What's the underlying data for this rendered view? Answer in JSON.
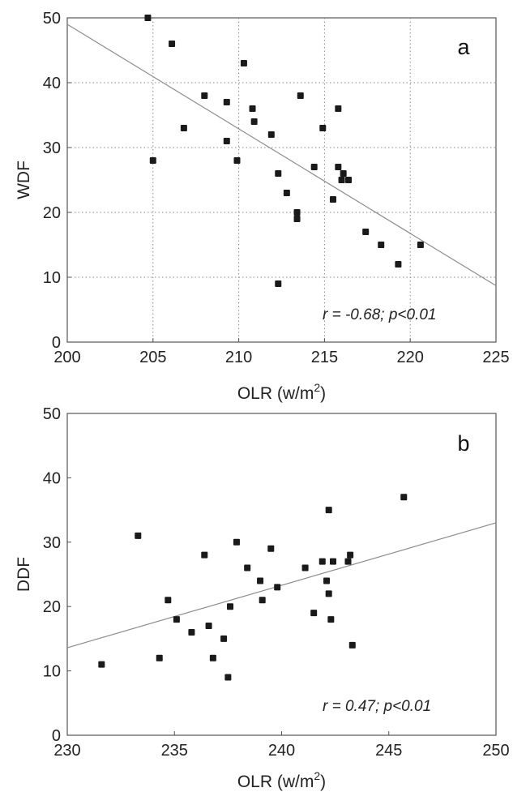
{
  "chart_data": [
    {
      "type": "scatter",
      "panel_letter": "a",
      "xlabel": "OLR (w/m",
      "xlabel_sup": "2",
      "xlabel_close": ")",
      "ylabel": "WDF",
      "xlim": [
        200,
        225
      ],
      "ylim": [
        0,
        50
      ],
      "xticks": [
        200,
        205,
        210,
        215,
        220,
        225
      ],
      "yticks": [
        0,
        10,
        20,
        30,
        40,
        50
      ],
      "grid": true,
      "annotation": "r = -0.68;  p<0.01",
      "points": [
        {
          "x": 204.7,
          "y": 50
        },
        {
          "x": 205.0,
          "y": 28
        },
        {
          "x": 206.1,
          "y": 46
        },
        {
          "x": 206.8,
          "y": 33
        },
        {
          "x": 208.0,
          "y": 38
        },
        {
          "x": 209.3,
          "y": 37
        },
        {
          "x": 209.3,
          "y": 31
        },
        {
          "x": 209.9,
          "y": 28
        },
        {
          "x": 210.3,
          "y": 43
        },
        {
          "x": 210.8,
          "y": 36
        },
        {
          "x": 210.9,
          "y": 34
        },
        {
          "x": 211.9,
          "y": 32
        },
        {
          "x": 212.3,
          "y": 26
        },
        {
          "x": 212.3,
          "y": 9
        },
        {
          "x": 212.8,
          "y": 23
        },
        {
          "x": 213.4,
          "y": 20
        },
        {
          "x": 213.4,
          "y": 19
        },
        {
          "x": 213.6,
          "y": 38
        },
        {
          "x": 214.4,
          "y": 27
        },
        {
          "x": 214.9,
          "y": 33
        },
        {
          "x": 215.5,
          "y": 22
        },
        {
          "x": 215.8,
          "y": 36
        },
        {
          "x": 215.8,
          "y": 27
        },
        {
          "x": 216.0,
          "y": 25
        },
        {
          "x": 216.1,
          "y": 26
        },
        {
          "x": 216.4,
          "y": 25
        },
        {
          "x": 217.4,
          "y": 17
        },
        {
          "x": 218.3,
          "y": 15
        },
        {
          "x": 219.3,
          "y": 12
        },
        {
          "x": 220.6,
          "y": 15
        }
      ],
      "fit_line": {
        "x": [
          200,
          225
        ],
        "y": [
          49,
          8.7
        ]
      }
    },
    {
      "type": "scatter",
      "panel_letter": "b",
      "xlabel": "OLR (w/m",
      "xlabel_sup": "2",
      "xlabel_close": ")",
      "ylabel": "DDF",
      "xlim": [
        230,
        250
      ],
      "ylim": [
        0,
        50
      ],
      "xticks": [
        230,
        235,
        240,
        245,
        250
      ],
      "yticks": [
        0,
        10,
        20,
        30,
        40,
        50
      ],
      "grid": false,
      "annotation": "r = 0.47;  p<0.01",
      "points": [
        {
          "x": 231.6,
          "y": 11
        },
        {
          "x": 233.3,
          "y": 31
        },
        {
          "x": 234.3,
          "y": 12
        },
        {
          "x": 234.7,
          "y": 21
        },
        {
          "x": 235.1,
          "y": 18
        },
        {
          "x": 235.8,
          "y": 16
        },
        {
          "x": 236.4,
          "y": 28
        },
        {
          "x": 236.6,
          "y": 17
        },
        {
          "x": 236.8,
          "y": 12
        },
        {
          "x": 237.3,
          "y": 15
        },
        {
          "x": 237.5,
          "y": 9
        },
        {
          "x": 237.6,
          "y": 20
        },
        {
          "x": 237.9,
          "y": 30
        },
        {
          "x": 238.4,
          "y": 26
        },
        {
          "x": 239.0,
          "y": 24
        },
        {
          "x": 239.1,
          "y": 21
        },
        {
          "x": 239.5,
          "y": 29
        },
        {
          "x": 239.8,
          "y": 23
        },
        {
          "x": 241.1,
          "y": 26
        },
        {
          "x": 241.5,
          "y": 19
        },
        {
          "x": 241.9,
          "y": 27
        },
        {
          "x": 242.1,
          "y": 24
        },
        {
          "x": 242.2,
          "y": 35
        },
        {
          "x": 242.2,
          "y": 22
        },
        {
          "x": 242.3,
          "y": 18
        },
        {
          "x": 242.4,
          "y": 27
        },
        {
          "x": 243.1,
          "y": 27
        },
        {
          "x": 243.2,
          "y": 28
        },
        {
          "x": 243.3,
          "y": 14
        },
        {
          "x": 245.7,
          "y": 37
        }
      ],
      "fit_line": {
        "x": [
          230,
          250
        ],
        "y": [
          13.6,
          33
        ]
      }
    }
  ]
}
